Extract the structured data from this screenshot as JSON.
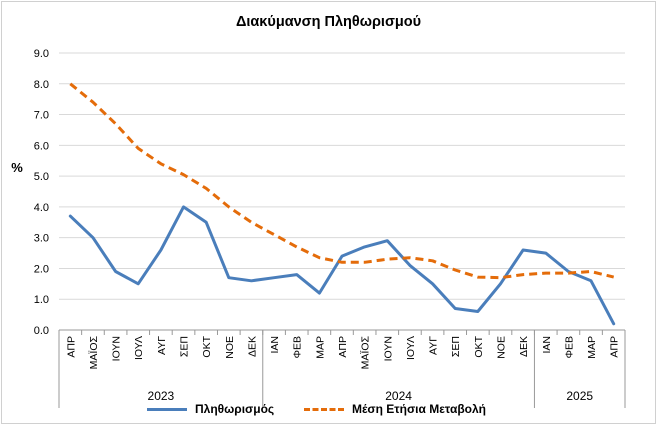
{
  "chart_data": {
    "type": "line",
    "title": "Διακύμανση Πληθωρισμού",
    "ylabel": "%",
    "xlabel": "",
    "ylim": [
      0,
      9
    ],
    "yticks": [
      "0.0",
      "1.0",
      "2.0",
      "3.0",
      "4.0",
      "5.0",
      "6.0",
      "7.0",
      "8.0",
      "9.0"
    ],
    "grid": true,
    "legend_position": "bottom",
    "categories": [
      "ΑΠΡ",
      "ΜΑΪΟΣ",
      "ΙΟΥΝ",
      "ΙΟΥΛ",
      "ΑΥΓ",
      "ΣΕΠ",
      "ΟΚΤ",
      "ΝΟΕ",
      "ΔΕΚ",
      "ΙΑΝ",
      "ΦΕΒ",
      "ΜΑΡ",
      "ΑΠΡ",
      "ΜΑΪΟΣ",
      "ΙΟΥΝ",
      "ΙΟΥΛ",
      "ΑΥΓ",
      "ΣΕΠ",
      "ΟΚΤ",
      "ΝΟΕ",
      "ΔΕΚ",
      "ΙΑΝ",
      "ΦΕΒ",
      "ΜΑΡ",
      "ΑΠΡ"
    ],
    "year_groups": [
      {
        "label": "2023",
        "count": 9
      },
      {
        "label": "2024",
        "count": 12
      },
      {
        "label": "2025",
        "count": 4
      }
    ],
    "series": [
      {
        "name": "Πληθωρισμός",
        "color": "#4a7ebb",
        "style": "solid",
        "values": [
          3.7,
          3.0,
          1.9,
          1.5,
          2.6,
          4.0,
          3.5,
          1.7,
          1.6,
          1.7,
          1.8,
          1.2,
          2.4,
          2.7,
          2.9,
          2.1,
          1.5,
          0.7,
          0.6,
          1.5,
          2.6,
          2.5,
          1.9,
          1.6,
          0.2
        ]
      },
      {
        "name": "Μέση Ετήσια Μεταβολή",
        "color": "#e46c0a",
        "style": "dashed",
        "values": [
          8.0,
          7.4,
          6.7,
          5.9,
          5.4,
          5.05,
          4.6,
          4.0,
          3.5,
          3.1,
          2.7,
          2.35,
          2.2,
          2.2,
          2.3,
          2.35,
          2.25,
          1.95,
          1.72,
          1.7,
          1.8,
          1.85,
          1.85,
          1.9,
          1.72
        ]
      }
    ]
  }
}
